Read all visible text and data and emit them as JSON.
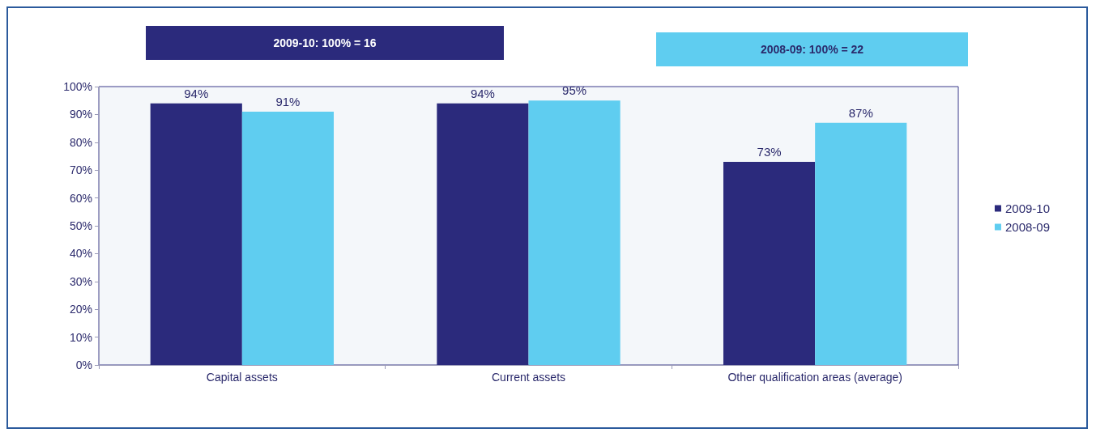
{
  "chart_data": {
    "type": "bar",
    "categories": [
      "Capital assets",
      "Current assets",
      "Other qualification areas (average)"
    ],
    "series": [
      {
        "name": "2009-10",
        "color": "#2b2a7c",
        "values": [
          94,
          94,
          73
        ],
        "value_labels": [
          "94%",
          "94%",
          "73%"
        ]
      },
      {
        "name": "2008-09",
        "color": "#5fcdf0",
        "values": [
          91,
          95,
          87
        ],
        "value_labels": [
          "91%",
          "95%",
          "87%"
        ]
      }
    ],
    "ylim": [
      0,
      100
    ],
    "yticks": [
      {
        "value": 0,
        "label": "0%"
      },
      {
        "value": 10,
        "label": "10%"
      },
      {
        "value": 20,
        "label": "20%"
      },
      {
        "value": 30,
        "label": "30%"
      },
      {
        "value": 40,
        "label": "40%"
      },
      {
        "value": 50,
        "label": "50%"
      },
      {
        "value": 60,
        "label": "60%"
      },
      {
        "value": 70,
        "label": "70%"
      },
      {
        "value": 80,
        "label": "80%"
      },
      {
        "value": 90,
        "label": "90%"
      },
      {
        "value": 100,
        "label": "100%"
      }
    ],
    "annotations": [
      "2009-10: 100% = 16",
      "2008-09: 100% = 22"
    ],
    "grid": false,
    "legend": "right"
  }
}
